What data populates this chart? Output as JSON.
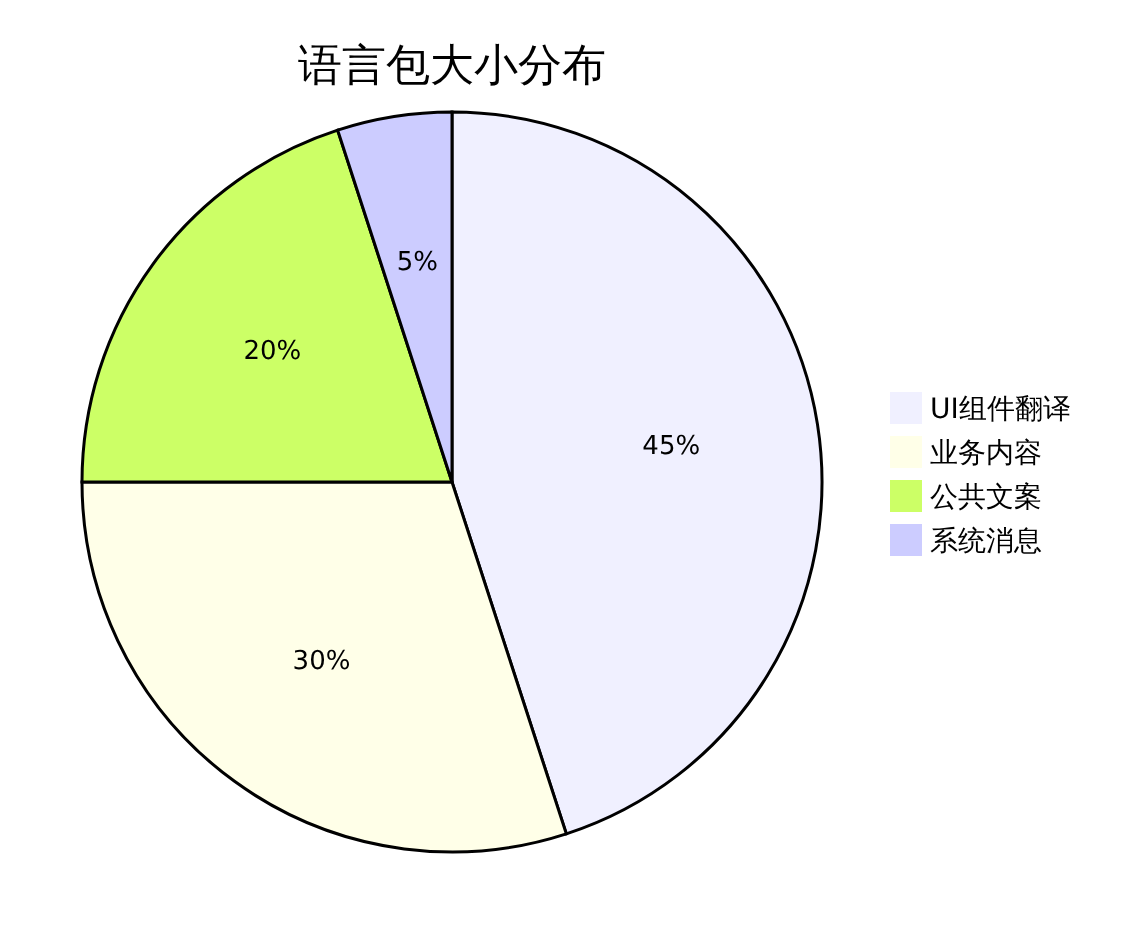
{
  "chart_data": {
    "type": "pie",
    "title": "语言包大小分布",
    "categories": [
      "UI组件翻译",
      "业务内容",
      "公共文案",
      "系统消息"
    ],
    "values": [
      45,
      30,
      20,
      5
    ],
    "colors": [
      "#f0f0ff",
      "#ffffe8",
      "#ccff66",
      "#ccccff"
    ],
    "value_labels": [
      "45%",
      "30%",
      "20%",
      "5%"
    ],
    "legend": "right"
  }
}
